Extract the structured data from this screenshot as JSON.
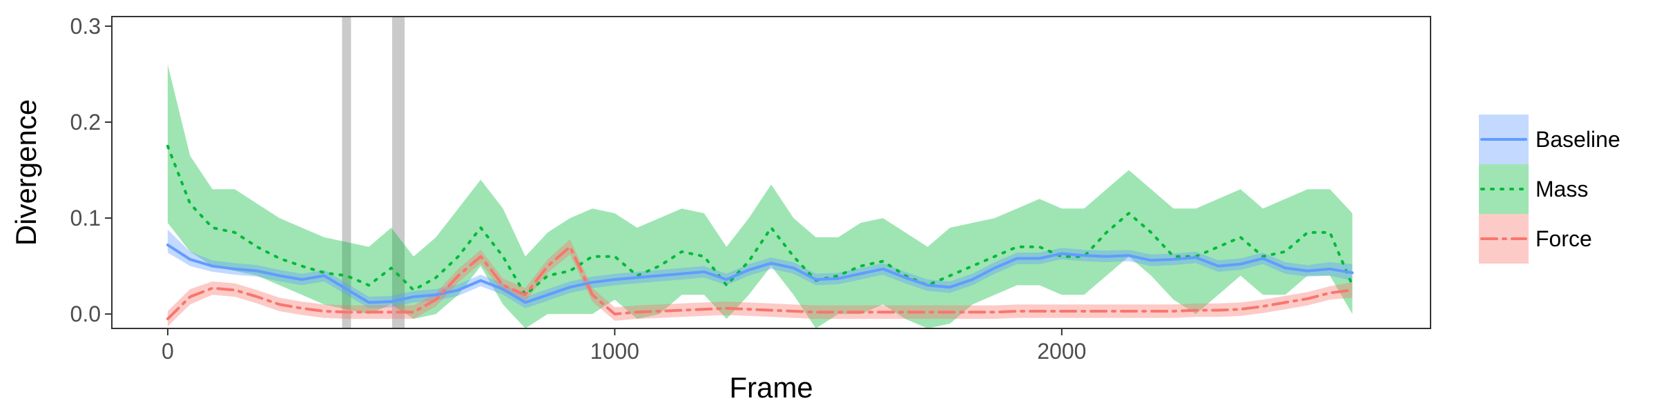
{
  "chart_data": {
    "type": "line",
    "title": "",
    "xlabel": "Frame",
    "ylabel": "Divergence",
    "xlim": [
      -125,
      2825
    ],
    "ylim": [
      -0.015,
      0.31
    ],
    "xticks": [
      0,
      1000,
      2000
    ],
    "xtick_labels": [
      "0",
      "1000",
      "2000"
    ],
    "yticks": [
      0.0,
      0.1,
      0.2,
      0.3
    ],
    "ytick_labels": [
      "0.0",
      "0.1",
      "0.2",
      "0.3"
    ],
    "grid": false,
    "legend_position": "right",
    "vertical_bands": [
      {
        "x0": 390,
        "x1": 410
      },
      {
        "x0": 502,
        "x1": 530
      }
    ],
    "series": [
      {
        "name": "Baseline",
        "color": "#619CFF",
        "linestyle": "solid",
        "x": [
          0,
          50,
          100,
          150,
          200,
          250,
          300,
          350,
          400,
          450,
          500,
          550,
          600,
          650,
          700,
          750,
          800,
          850,
          900,
          950,
          1000,
          1050,
          1100,
          1150,
          1200,
          1250,
          1300,
          1350,
          1400,
          1450,
          1500,
          1550,
          1600,
          1650,
          1700,
          1750,
          1800,
          1850,
          1900,
          1950,
          2000,
          2050,
          2100,
          2150,
          2200,
          2250,
          2300,
          2350,
          2400,
          2450,
          2500,
          2550,
          2600,
          2650
        ],
        "y": [
          0.072,
          0.057,
          0.05,
          0.047,
          0.045,
          0.04,
          0.036,
          0.04,
          0.026,
          0.012,
          0.013,
          0.018,
          0.02,
          0.025,
          0.035,
          0.026,
          0.012,
          0.02,
          0.028,
          0.033,
          0.036,
          0.038,
          0.04,
          0.042,
          0.044,
          0.036,
          0.046,
          0.053,
          0.048,
          0.036,
          0.037,
          0.042,
          0.047,
          0.038,
          0.03,
          0.028,
          0.036,
          0.048,
          0.058,
          0.058,
          0.063,
          0.061,
          0.06,
          0.061,
          0.056,
          0.057,
          0.059,
          0.05,
          0.052,
          0.058,
          0.048,
          0.045,
          0.047,
          0.043
        ],
        "lower": [
          0.064,
          0.05,
          0.044,
          0.041,
          0.039,
          0.034,
          0.03,
          0.034,
          0.02,
          0.006,
          0.007,
          0.012,
          0.014,
          0.019,
          0.029,
          0.02,
          0.006,
          0.014,
          0.022,
          0.027,
          0.03,
          0.032,
          0.034,
          0.036,
          0.038,
          0.03,
          0.04,
          0.047,
          0.042,
          0.03,
          0.031,
          0.036,
          0.041,
          0.032,
          0.024,
          0.022,
          0.03,
          0.042,
          0.052,
          0.052,
          0.057,
          0.055,
          0.054,
          0.055,
          0.05,
          0.051,
          0.053,
          0.044,
          0.046,
          0.052,
          0.042,
          0.039,
          0.04,
          0.035
        ],
        "upper": [
          0.088,
          0.065,
          0.056,
          0.053,
          0.051,
          0.046,
          0.042,
          0.046,
          0.032,
          0.018,
          0.019,
          0.024,
          0.026,
          0.031,
          0.041,
          0.032,
          0.018,
          0.026,
          0.034,
          0.039,
          0.042,
          0.044,
          0.046,
          0.048,
          0.05,
          0.042,
          0.052,
          0.059,
          0.054,
          0.042,
          0.043,
          0.048,
          0.053,
          0.044,
          0.036,
          0.034,
          0.042,
          0.054,
          0.064,
          0.064,
          0.069,
          0.067,
          0.066,
          0.067,
          0.062,
          0.063,
          0.065,
          0.056,
          0.058,
          0.064,
          0.054,
          0.051,
          0.054,
          0.052
        ]
      },
      {
        "name": "Mass",
        "color": "#00BA38",
        "linestyle": "dotted",
        "x": [
          0,
          50,
          100,
          150,
          200,
          250,
          300,
          350,
          400,
          450,
          500,
          550,
          600,
          650,
          700,
          750,
          800,
          850,
          900,
          950,
          1000,
          1050,
          1100,
          1150,
          1200,
          1250,
          1300,
          1350,
          1400,
          1450,
          1500,
          1550,
          1600,
          1650,
          1700,
          1750,
          1800,
          1850,
          1900,
          1950,
          2000,
          2050,
          2100,
          2150,
          2200,
          2250,
          2300,
          2350,
          2400,
          2450,
          2500,
          2550,
          2600,
          2650
        ],
        "y": [
          0.175,
          0.115,
          0.09,
          0.085,
          0.07,
          0.058,
          0.05,
          0.043,
          0.04,
          0.03,
          0.048,
          0.025,
          0.038,
          0.06,
          0.09,
          0.06,
          0.02,
          0.04,
          0.045,
          0.06,
          0.06,
          0.04,
          0.05,
          0.065,
          0.06,
          0.03,
          0.055,
          0.09,
          0.06,
          0.035,
          0.04,
          0.05,
          0.055,
          0.04,
          0.03,
          0.04,
          0.05,
          0.06,
          0.07,
          0.07,
          0.06,
          0.06,
          0.085,
          0.105,
          0.085,
          0.06,
          0.06,
          0.07,
          0.08,
          0.06,
          0.065,
          0.085,
          0.085,
          0.03
        ],
        "lower": [
          0.095,
          0.065,
          0.05,
          0.045,
          0.04,
          0.03,
          0.02,
          0.01,
          0.005,
          0.0,
          0.01,
          -0.005,
          0.0,
          0.02,
          0.05,
          0.01,
          -0.015,
          0.0,
          0.0,
          0.0,
          0.015,
          -0.005,
          0.0,
          0.02,
          0.02,
          -0.005,
          0.02,
          0.05,
          0.02,
          -0.015,
          0.0,
          0.0,
          0.01,
          -0.005,
          -0.015,
          -0.01,
          0.01,
          0.02,
          0.03,
          0.03,
          0.02,
          0.02,
          0.04,
          0.06,
          0.04,
          0.015,
          0.0,
          0.02,
          0.04,
          0.02,
          0.02,
          0.04,
          0.04,
          0.0
        ],
        "upper": [
          0.26,
          0.165,
          0.13,
          0.13,
          0.115,
          0.1,
          0.09,
          0.08,
          0.075,
          0.07,
          0.09,
          0.06,
          0.08,
          0.11,
          0.14,
          0.11,
          0.06,
          0.085,
          0.1,
          0.11,
          0.105,
          0.09,
          0.1,
          0.11,
          0.105,
          0.07,
          0.1,
          0.135,
          0.1,
          0.08,
          0.08,
          0.095,
          0.1,
          0.085,
          0.07,
          0.09,
          0.095,
          0.1,
          0.11,
          0.12,
          0.11,
          0.11,
          0.13,
          0.15,
          0.13,
          0.11,
          0.11,
          0.12,
          0.13,
          0.11,
          0.12,
          0.13,
          0.13,
          0.105
        ]
      },
      {
        "name": "Force",
        "color": "#F8766D",
        "linestyle": "dashdot",
        "x": [
          0,
          50,
          100,
          150,
          200,
          250,
          300,
          350,
          400,
          450,
          500,
          550,
          600,
          650,
          700,
          750,
          800,
          850,
          900,
          950,
          1000,
          1050,
          1100,
          1150,
          1200,
          1250,
          1300,
          1350,
          1400,
          1450,
          1500,
          1550,
          1600,
          1650,
          1700,
          1750,
          1800,
          1850,
          1900,
          1950,
          2000,
          2050,
          2100,
          2150,
          2200,
          2250,
          2300,
          2350,
          2400,
          2450,
          2500,
          2550,
          2600,
          2650
        ],
        "y": [
          -0.005,
          0.018,
          0.027,
          0.025,
          0.018,
          0.01,
          0.006,
          0.003,
          0.002,
          0.002,
          0.002,
          0.002,
          0.015,
          0.04,
          0.06,
          0.03,
          0.02,
          0.05,
          0.07,
          0.02,
          0.0,
          0.002,
          0.003,
          0.004,
          0.005,
          0.006,
          0.005,
          0.004,
          0.003,
          0.002,
          0.002,
          0.002,
          0.002,
          0.002,
          0.002,
          0.002,
          0.002,
          0.002,
          0.003,
          0.003,
          0.003,
          0.003,
          0.003,
          0.003,
          0.003,
          0.003,
          0.004,
          0.004,
          0.005,
          0.008,
          0.012,
          0.016,
          0.022,
          0.025
        ],
        "lower": [
          -0.013,
          0.01,
          0.02,
          0.018,
          0.011,
          0.003,
          -0.001,
          -0.004,
          -0.005,
          -0.005,
          -0.005,
          -0.005,
          0.008,
          0.033,
          0.053,
          0.023,
          0.013,
          0.043,
          0.062,
          0.013,
          -0.007,
          -0.005,
          -0.004,
          -0.003,
          -0.002,
          -0.001,
          -0.002,
          -0.003,
          -0.004,
          -0.005,
          -0.005,
          -0.005,
          -0.005,
          -0.005,
          -0.005,
          -0.005,
          -0.005,
          -0.005,
          -0.004,
          -0.004,
          -0.004,
          -0.004,
          -0.004,
          -0.004,
          -0.004,
          -0.004,
          -0.003,
          -0.003,
          -0.002,
          0.001,
          0.005,
          0.009,
          0.015,
          0.017
        ],
        "upper": [
          0.003,
          0.026,
          0.034,
          0.032,
          0.025,
          0.017,
          0.013,
          0.01,
          0.009,
          0.009,
          0.009,
          0.009,
          0.022,
          0.047,
          0.067,
          0.037,
          0.027,
          0.057,
          0.078,
          0.027,
          0.007,
          0.009,
          0.01,
          0.011,
          0.012,
          0.013,
          0.012,
          0.011,
          0.01,
          0.009,
          0.009,
          0.009,
          0.009,
          0.009,
          0.009,
          0.009,
          0.009,
          0.009,
          0.01,
          0.01,
          0.01,
          0.01,
          0.01,
          0.01,
          0.01,
          0.01,
          0.011,
          0.011,
          0.012,
          0.015,
          0.019,
          0.023,
          0.029,
          0.033
        ]
      }
    ]
  }
}
